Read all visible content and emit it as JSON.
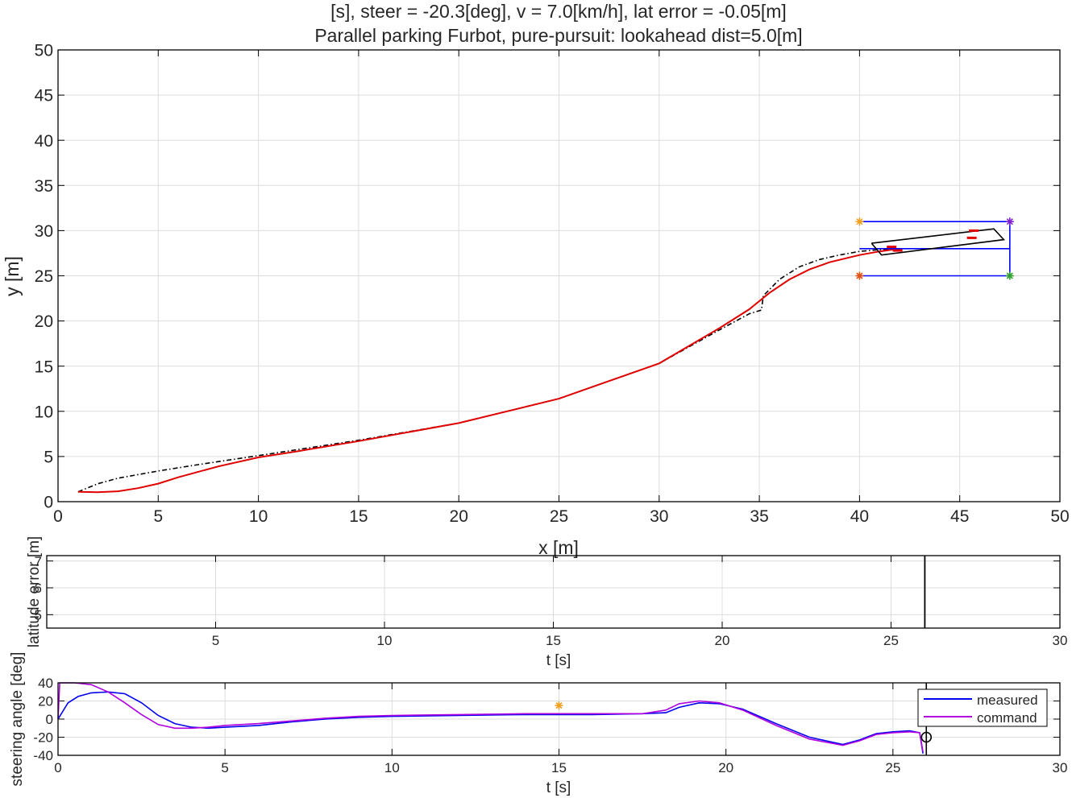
{
  "title_line1": "[s], steer = -20.3[deg], v = 7.0[km/h], lat error = -0.05[m]",
  "title_line2": "Parallel parking Furbot, pure-pursuit: lookahead dist=5.0[m]",
  "colors": {
    "actual_path": "#e00000",
    "reference_path": "#000000",
    "parking_box": "#0000ff",
    "grid": "#dcdcdc",
    "measured": "#0000ee",
    "command": "#b000e0",
    "star_orange": "#f0a020",
    "star_red": "#e05010",
    "star_purple": "#8020d0",
    "star_green": "#30a030"
  },
  "chart_data": [
    {
      "type": "line",
      "id": "trajectory",
      "xlabel": "x [m]",
      "ylabel": "y [m]",
      "xlim": [
        0,
        50
      ],
      "ylim": [
        0,
        50
      ],
      "xticks": [
        0,
        5,
        10,
        15,
        20,
        25,
        30,
        35,
        40,
        45,
        50
      ],
      "yticks": [
        0,
        5,
        10,
        15,
        20,
        25,
        30,
        35,
        40,
        45,
        50
      ],
      "grid": true,
      "series": [
        {
          "role": "reference",
          "style": "dash-dot",
          "x": [
            1,
            2,
            3,
            5,
            7,
            10,
            15,
            20,
            25,
            30,
            33,
            34.5,
            35.1,
            35.2,
            36,
            37,
            38,
            39,
            40,
            41,
            42
          ],
          "y": [
            1.1,
            2.0,
            2.6,
            3.4,
            4.1,
            5.1,
            6.8,
            8.7,
            11.4,
            15.3,
            19.0,
            20.8,
            21.2,
            22.8,
            24.6,
            26.0,
            26.8,
            27.3,
            27.7,
            27.9,
            28.0
          ]
        },
        {
          "role": "actual",
          "style": "solid",
          "x": [
            1,
            2,
            3,
            4,
            5,
            6,
            8,
            10,
            12,
            15,
            20,
            25,
            30,
            33,
            34.5,
            35.5,
            36.5,
            37.5,
            38.5,
            40,
            41,
            42
          ],
          "y": [
            1.1,
            1.05,
            1.15,
            1.5,
            2.0,
            2.7,
            3.9,
            4.9,
            5.6,
            6.7,
            8.7,
            11.4,
            15.3,
            19.2,
            21.3,
            23.1,
            24.6,
            25.7,
            26.5,
            27.3,
            27.7,
            28.0
          ]
        }
      ],
      "parking_box": {
        "x": [
          40,
          47.5
        ],
        "y": [
          25,
          31
        ],
        "centerline_y": 28
      },
      "corner_markers": [
        {
          "x": 40,
          "y": 31,
          "color": "star_orange"
        },
        {
          "x": 40,
          "y": 25,
          "color": "star_red"
        },
        {
          "x": 47.5,
          "y": 31,
          "color": "star_purple"
        },
        {
          "x": 47.5,
          "y": 25,
          "color": "star_green"
        }
      ],
      "vehicle_outline": {
        "x": [
          40.6,
          46.7,
          47.2,
          41.1,
          40.6
        ],
        "y": [
          28.6,
          30.2,
          29.0,
          27.3,
          28.6
        ]
      },
      "wheel_marks": [
        {
          "x": 41.6,
          "y": 28.2
        },
        {
          "x": 41.9,
          "y": 27.8
        },
        {
          "x": 45.6,
          "y": 29.2
        },
        {
          "x": 45.7,
          "y": 30.0
        }
      ]
    },
    {
      "type": "line",
      "id": "lateral-error",
      "xlabel": "t [s]",
      "ylabel": "latitude error [m]",
      "xlim": [
        0,
        30
      ],
      "ylim": [
        4.5,
        7.2
      ],
      "xticks": [
        5,
        10,
        15,
        20,
        25,
        30
      ],
      "yticks": [
        5,
        6,
        7
      ],
      "grid": true,
      "cursor_t": 26
    },
    {
      "type": "line",
      "id": "steering",
      "xlabel": "t [s]",
      "ylabel": "steering angle [deg]",
      "xlim": [
        0,
        30
      ],
      "ylim": [
        -40,
        40
      ],
      "xticks": [
        0,
        5,
        10,
        15,
        20,
        25,
        30
      ],
      "yticks": [
        -40,
        -20,
        0,
        20,
        40
      ],
      "grid": true,
      "legend_position": "top-right",
      "series": [
        {
          "name": "measured",
          "t": [
            0,
            0.3,
            0.6,
            1.0,
            1.5,
            2.0,
            2.5,
            3.0,
            3.5,
            4.0,
            4.5,
            5.0,
            6,
            7,
            8,
            9,
            10,
            12,
            14,
            16,
            17.5,
            18.2,
            18.6,
            19.2,
            19.8,
            20.5,
            21.5,
            22.5,
            23.5,
            24.0,
            24.5,
            25.0,
            25.5,
            25.8,
            25.9
          ],
          "v": [
            0,
            18,
            25,
            29,
            30,
            28,
            18,
            4,
            -5,
            -9,
            -10,
            -9,
            -7,
            -3,
            0,
            2,
            3,
            4,
            5,
            5,
            6,
            7,
            13,
            18,
            17,
            11,
            -5,
            -20,
            -28,
            -23,
            -16,
            -14,
            -13,
            -15,
            -38
          ]
        },
        {
          "name": "command",
          "t": [
            0,
            0.05,
            0.5,
            1.0,
            1.5,
            2.0,
            2.5,
            3.0,
            3.5,
            4.0,
            4.5,
            5.0,
            6,
            7,
            8,
            9,
            10,
            12,
            14,
            16,
            17.5,
            18.2,
            18.6,
            19.2,
            19.8,
            20.5,
            21.5,
            22.5,
            23.5,
            24.0,
            24.5,
            25.0,
            25.5,
            25.8,
            25.9
          ],
          "v": [
            0,
            40,
            40,
            38,
            30,
            18,
            5,
            -6,
            -10,
            -10,
            -9,
            -7,
            -5,
            -2,
            1,
            3,
            4,
            5,
            6,
            6,
            6,
            10,
            17,
            20,
            18,
            10,
            -7,
            -22,
            -29,
            -24,
            -17,
            -15,
            -14,
            -15,
            -36
          ]
        }
      ],
      "marker_star": {
        "t": 15,
        "v": 15
      },
      "marker_circle": {
        "t": 26,
        "v": -20
      }
    }
  ]
}
